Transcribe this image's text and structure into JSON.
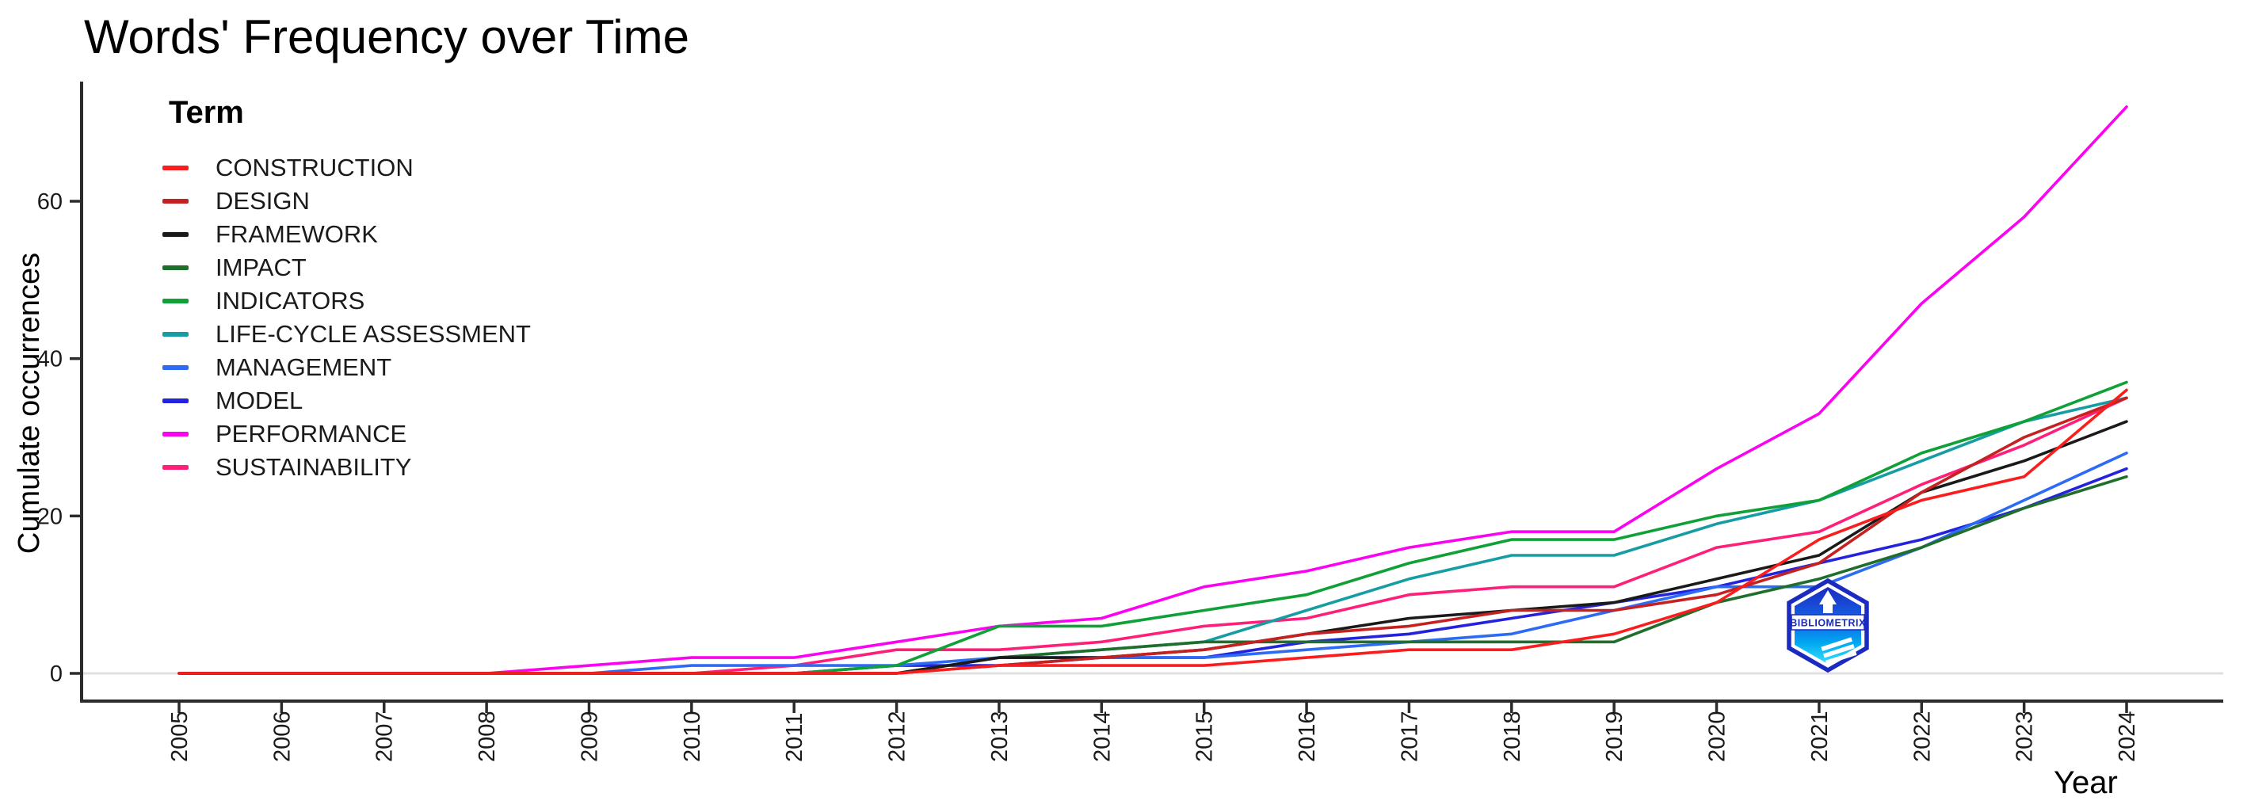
{
  "legend": {
    "title": "Term"
  },
  "watermark": {
    "text": "BIBLIOMETRIX"
  },
  "chart_data": {
    "type": "line",
    "title": "Words' Frequency over Time",
    "xlabel": "Year",
    "ylabel": "Cumulate occurrences",
    "x": [
      2005,
      2006,
      2007,
      2008,
      2009,
      2010,
      2011,
      2012,
      2013,
      2014,
      2015,
      2016,
      2017,
      2018,
      2019,
      2020,
      2021,
      2022,
      2023,
      2024
    ],
    "ylim": [
      0,
      75
    ],
    "yticks": [
      0,
      20,
      40,
      60
    ],
    "grid": "baseline-only",
    "legend_position": "inside-top-left",
    "axis_color": "#2b2b2b",
    "baseline_color": "#e0e0e0",
    "series": [
      {
        "name": "CONSTRUCTION",
        "color": "#fb1d1d",
        "values": [
          0,
          0,
          0,
          0,
          0,
          0,
          0,
          0,
          1,
          1,
          1,
          2,
          3,
          3,
          5,
          9,
          17,
          22,
          25,
          36
        ]
      },
      {
        "name": "DESIGN",
        "color": "#c62121",
        "values": [
          0,
          0,
          0,
          0,
          0,
          0,
          0,
          0,
          1,
          2,
          3,
          5,
          6,
          8,
          8,
          10,
          14,
          23,
          30,
          35
        ]
      },
      {
        "name": "FRAMEWORK",
        "color": "#1a1a1a",
        "values": [
          0,
          0,
          0,
          0,
          0,
          0,
          0,
          0,
          2,
          2,
          3,
          5,
          7,
          8,
          9,
          12,
          15,
          23,
          27,
          32
        ]
      },
      {
        "name": "IMPACT",
        "color": "#1f6e2b",
        "values": [
          0,
          0,
          0,
          0,
          0,
          0,
          0,
          0,
          2,
          3,
          4,
          4,
          4,
          4,
          4,
          9,
          12,
          16,
          21,
          25
        ]
      },
      {
        "name": "INDICATORS",
        "color": "#0fa037",
        "values": [
          0,
          0,
          0,
          0,
          0,
          0,
          0,
          1,
          6,
          6,
          8,
          10,
          14,
          17,
          17,
          20,
          22,
          28,
          32,
          37
        ]
      },
      {
        "name": "LIFE-CYCLE ASSESSMENT",
        "color": "#159da3",
        "values": [
          0,
          0,
          0,
          0,
          0,
          0,
          0,
          0,
          2,
          3,
          4,
          8,
          12,
          15,
          15,
          19,
          22,
          27,
          32,
          35
        ]
      },
      {
        "name": "MANAGEMENT",
        "color": "#2e6bf5",
        "values": [
          0,
          0,
          0,
          0,
          0,
          1,
          1,
          1,
          2,
          2,
          2,
          3,
          4,
          5,
          8,
          11,
          11,
          16,
          22,
          28
        ]
      },
      {
        "name": "MODEL",
        "color": "#2323dd",
        "values": [
          0,
          0,
          0,
          0,
          0,
          0,
          0,
          1,
          1,
          2,
          2,
          4,
          5,
          7,
          9,
          11,
          14,
          17,
          21,
          26
        ]
      },
      {
        "name": "PERFORMANCE",
        "color": "#fb02f0",
        "values": [
          0,
          0,
          0,
          0,
          1,
          2,
          2,
          4,
          6,
          7,
          11,
          13,
          16,
          18,
          18,
          26,
          33,
          47,
          58,
          72
        ]
      },
      {
        "name": "SUSTAINABILITY",
        "color": "#ff1f78",
        "values": [
          0,
          0,
          0,
          0,
          0,
          0,
          1,
          3,
          3,
          4,
          6,
          7,
          10,
          11,
          11,
          16,
          18,
          24,
          29,
          35
        ]
      }
    ]
  }
}
